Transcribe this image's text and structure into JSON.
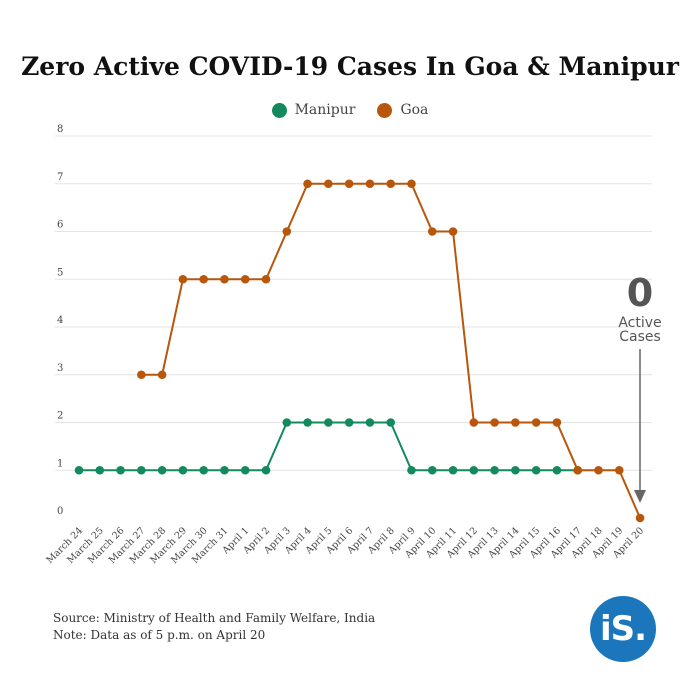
{
  "title": "Zero Active COVID-19 Cases In Goa & Manipur",
  "legend": [
    {
      "name": "Manipur",
      "color": "#138a5e"
    },
    {
      "name": "Goa",
      "color": "#b8560c"
    }
  ],
  "footer": {
    "source": "Source: Ministry of Health and Family Welfare, India",
    "note": "Note: Data as of 5 p.m. on April 20"
  },
  "logo": {
    "text": "iS."
  },
  "annotation": {
    "value": "0",
    "line1": "Active",
    "line2": "Cases"
  },
  "chart_data": {
    "type": "line",
    "title": "Zero Active COVID-19 Cases In Goa & Manipur",
    "xlabel": "",
    "ylabel": "",
    "categories": [
      "March 24",
      "March 25",
      "March 26",
      "March 27",
      "March 28",
      "March 29",
      "March 30",
      "March 31",
      "April 1",
      "April 2",
      "April 3",
      "April 4",
      "April 5",
      "April 6",
      "April 7",
      "April 8",
      "April 9",
      "April 10",
      "April 11",
      "April 12",
      "April 13",
      "April 14",
      "April 15",
      "April 16",
      "April 17",
      "April 18",
      "April 19",
      "April 20"
    ],
    "yticks": [
      "0",
      "1",
      "2",
      "3",
      "4",
      "5",
      "6",
      "7",
      "8"
    ],
    "ylim": [
      0,
      8
    ],
    "grid": true,
    "legend_position": "top-center",
    "series": [
      {
        "name": "Manipur",
        "color": "#138a5e",
        "values": [
          1,
          1,
          1,
          1,
          1,
          1,
          1,
          1,
          1,
          1,
          2,
          2,
          2,
          2,
          2,
          2,
          1,
          1,
          1,
          1,
          1,
          1,
          1,
          1,
          1,
          null,
          null,
          null
        ]
      },
      {
        "name": "Goa",
        "color": "#b8560c",
        "values": [
          null,
          null,
          null,
          3,
          3,
          5,
          5,
          5,
          5,
          5,
          6,
          7,
          7,
          7,
          7,
          7,
          7,
          6,
          6,
          2,
          2,
          2,
          2,
          2,
          1,
          1,
          1,
          0
        ]
      }
    ]
  }
}
